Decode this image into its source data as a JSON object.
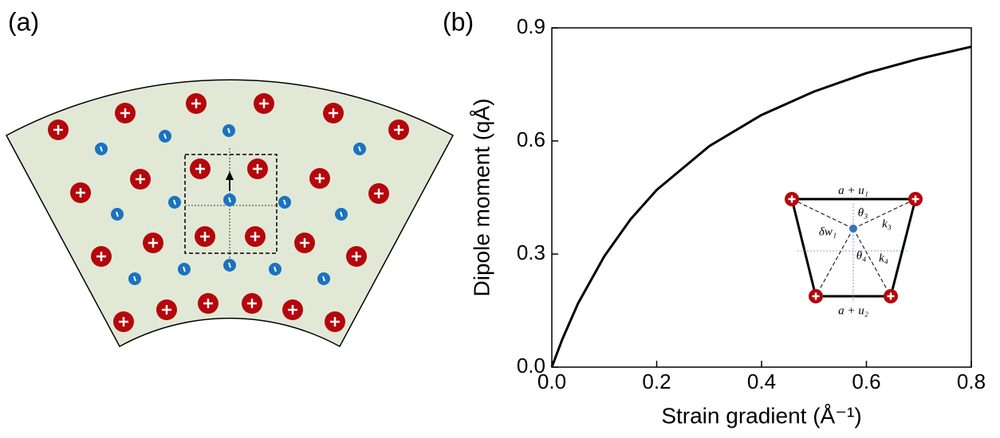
{
  "panel_a_label": "(a)",
  "panel_b_label": "(b)",
  "chart_data": {
    "type": "line",
    "x_label": "Strain gradient (Å⁻¹)",
    "y_label": "Dipole moment (qÅ)",
    "x": [
      0,
      0.02,
      0.05,
      0.1,
      0.15,
      0.2,
      0.3,
      0.4,
      0.5,
      0.6,
      0.7,
      0.8
    ],
    "values": [
      0,
      0.074,
      0.169,
      0.294,
      0.392,
      0.47,
      0.586,
      0.669,
      0.731,
      0.78,
      0.818,
      0.85
    ],
    "color": "#000000",
    "xlim": [
      0,
      0.8
    ],
    "ylim": [
      0,
      0.9
    ],
    "xticks": [
      {
        "value": 0,
        "label": "0.0"
      },
      0.2,
      0.4,
      0.6,
      0.8
    ],
    "yticks": [
      {
        "value": 0,
        "label": "0.0"
      },
      0.3,
      0.6,
      0.9
    ],
    "inset_labels": [
      "a + u₁",
      "a + u₂",
      "θ₃",
      "k₃",
      "δw₁",
      "θ₄",
      "k₄"
    ]
  }
}
